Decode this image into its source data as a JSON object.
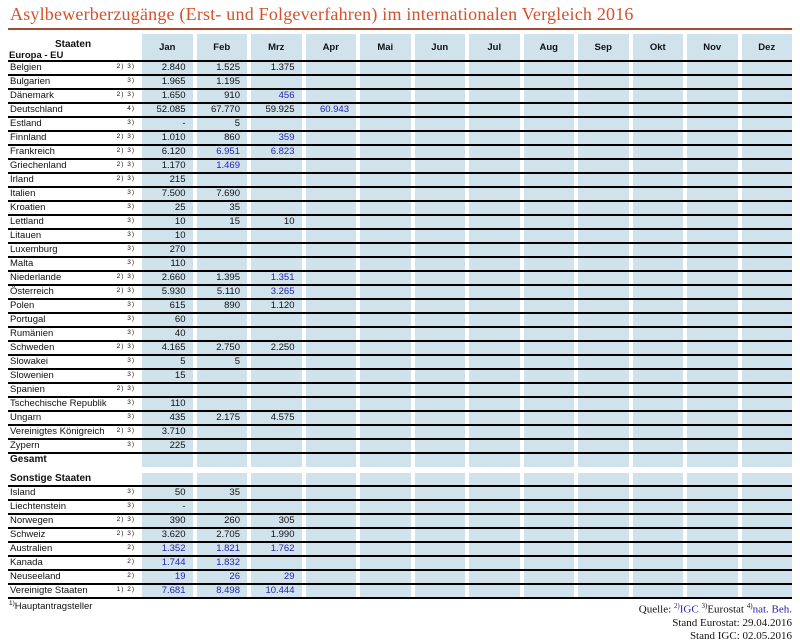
{
  "title": "Asylbewerberzugänge (Erst- und Folgeverfahren) im internationalen Vergleich 2016",
  "colors": {
    "accent_orange": "#d4512b",
    "cell_background": "#d0e2ec",
    "value_blue": "#2525ae"
  },
  "table": {
    "staaten_header": "Staaten",
    "eu_section_label": "Europa - EU",
    "months": [
      "Jan",
      "Feb",
      "Mrz",
      "Apr",
      "Mai",
      "Jun",
      "Jul",
      "Aug",
      "Sep",
      "Okt",
      "Nov",
      "Dez"
    ],
    "rows": [
      {
        "name": "Belgien",
        "sup": "2) 3)",
        "values": [
          "2.840",
          "1.525",
          "1.375"
        ],
        "blue": []
      },
      {
        "name": "Bulgarien",
        "sup": "3)",
        "values": [
          "1.965",
          "1.195"
        ],
        "blue": []
      },
      {
        "name": "Dänemark",
        "sup": "2) 3)",
        "values": [
          "1.650",
          "910",
          "456"
        ],
        "blue": [
          2
        ]
      },
      {
        "name": "Deutschland",
        "sup": "4)",
        "values": [
          "52.085",
          "67.770",
          "59.925",
          "60.943"
        ],
        "blue": [
          3
        ]
      },
      {
        "name": "Estland",
        "sup": "3)",
        "values": [
          "-",
          "5"
        ],
        "blue": []
      },
      {
        "name": "Finnland",
        "sup": "2) 3)",
        "values": [
          "1.010",
          "860",
          "359"
        ],
        "blue": [
          2
        ]
      },
      {
        "name": "Frankreich",
        "sup": "2) 3)",
        "values": [
          "6.120",
          "6.951",
          "6.823"
        ],
        "blue": [
          1,
          2
        ]
      },
      {
        "name": "Griechenland",
        "sup": "2) 3)",
        "values": [
          "1.170",
          "1.469"
        ],
        "blue": [
          1
        ]
      },
      {
        "name": "Irland",
        "sup": "2) 3)",
        "values": [
          "215"
        ],
        "blue": []
      },
      {
        "name": "Italien",
        "sup": "3)",
        "values": [
          "7.500",
          "7.690"
        ],
        "blue": []
      },
      {
        "name": "Kroatien",
        "sup": "3)",
        "values": [
          "25",
          "35"
        ],
        "blue": []
      },
      {
        "name": "Lettland",
        "sup": "3)",
        "values": [
          "10",
          "15",
          "10"
        ],
        "blue": []
      },
      {
        "name": "Litauen",
        "sup": "3)",
        "values": [
          "10"
        ],
        "blue": []
      },
      {
        "name": "Luxemburg",
        "sup": "3)",
        "values": [
          "270"
        ],
        "blue": []
      },
      {
        "name": "Malta",
        "sup": "3)",
        "values": [
          "110"
        ],
        "blue": []
      },
      {
        "name": "Niederlande",
        "sup": "2) 3)",
        "values": [
          "2.660",
          "1.395",
          "1.351"
        ],
        "blue": [
          2
        ]
      },
      {
        "name": "Österreich",
        "sup": "2) 3)",
        "values": [
          "5.930",
          "5.110",
          "3.265"
        ],
        "blue": [
          2
        ]
      },
      {
        "name": "Polen",
        "sup": "3)",
        "values": [
          "615",
          "890",
          "1.120"
        ],
        "blue": []
      },
      {
        "name": "Portugal",
        "sup": "3)",
        "values": [
          "60"
        ],
        "blue": []
      },
      {
        "name": "Rumänien",
        "sup": "3)",
        "values": [
          "40"
        ],
        "blue": []
      },
      {
        "name": "Schweden",
        "sup": "2) 3)",
        "values": [
          "4.165",
          "2.750",
          "2.250"
        ],
        "blue": []
      },
      {
        "name": "Slowakei",
        "sup": "3)",
        "values": [
          "5",
          "5"
        ],
        "blue": []
      },
      {
        "name": "Slowenien",
        "sup": "3)",
        "values": [
          "15"
        ],
        "blue": []
      },
      {
        "name": "Spanien",
        "sup": "2) 3)",
        "values": [],
        "blue": []
      },
      {
        "name": "Tschechische Republik",
        "sup": "3)",
        "values": [
          "110"
        ],
        "blue": []
      },
      {
        "name": "Ungarn",
        "sup": "3)",
        "values": [
          "435",
          "2.175",
          "4.575"
        ],
        "blue": []
      },
      {
        "name": "Vereinigtes Königreich",
        "sup": "2) 3)",
        "values": [
          "3.710"
        ],
        "blue": []
      },
      {
        "name": "Zypern",
        "sup": "3)",
        "values": [
          "225"
        ],
        "blue": []
      },
      {
        "name": "Gesamt",
        "sup": "",
        "type": "total",
        "values": [],
        "blue": []
      },
      {
        "type": "gap"
      },
      {
        "name": "Sonstige Staaten",
        "sup": "",
        "type": "section",
        "values": [],
        "blue": []
      },
      {
        "name": "Island",
        "sup": "3)",
        "values": [
          "50",
          "35"
        ],
        "blue": []
      },
      {
        "name": "Liechtenstein",
        "sup": "3)",
        "values": [
          "-"
        ],
        "blue": []
      },
      {
        "name": "Norwegen",
        "sup": "2) 3)",
        "values": [
          "390",
          "260",
          "305"
        ],
        "blue": []
      },
      {
        "name": "Schweiz",
        "sup": "2) 3)",
        "values": [
          "3.620",
          "2.705",
          "1.990"
        ],
        "blue": []
      },
      {
        "name": "Australien",
        "sup": "2)",
        "values": [
          "1.352",
          "1.821",
          "1.762"
        ],
        "blue": [
          0,
          1,
          2
        ]
      },
      {
        "name": "Kanada",
        "sup": "2)",
        "values": [
          "1.744",
          "1.832"
        ],
        "blue": [
          0,
          1
        ]
      },
      {
        "name": "Neuseeland",
        "sup": "2)",
        "values": [
          "19",
          "26",
          "29"
        ],
        "blue": [
          0,
          1,
          2
        ]
      },
      {
        "name": "Vereinigte Staaten",
        "sup": "1) 2)",
        "values": [
          "7.681",
          "8.498",
          "10.444"
        ],
        "blue": [
          0,
          1,
          2
        ]
      }
    ]
  },
  "footer": {
    "footnote_sup": "1)",
    "footnote_text": "Hauptantragsteller",
    "quelle_parts": [
      {
        "sup": "",
        "sup_blue": false,
        "text": "Quelle:",
        "text_blue": false
      },
      {
        "sup": "2)",
        "sup_blue": true,
        "text": "IGC",
        "text_blue": true
      },
      {
        "sup": "3)",
        "sup_blue": false,
        "text": "Eurostat",
        "text_blue": false
      },
      {
        "sup": "4)",
        "sup_blue": false,
        "text": "nat. Beh.",
        "text_blue": true
      }
    ],
    "stand_lines": [
      "Stand Eurostat: 29.04.2016",
      "Stand IGC: 02.05.2016"
    ]
  }
}
